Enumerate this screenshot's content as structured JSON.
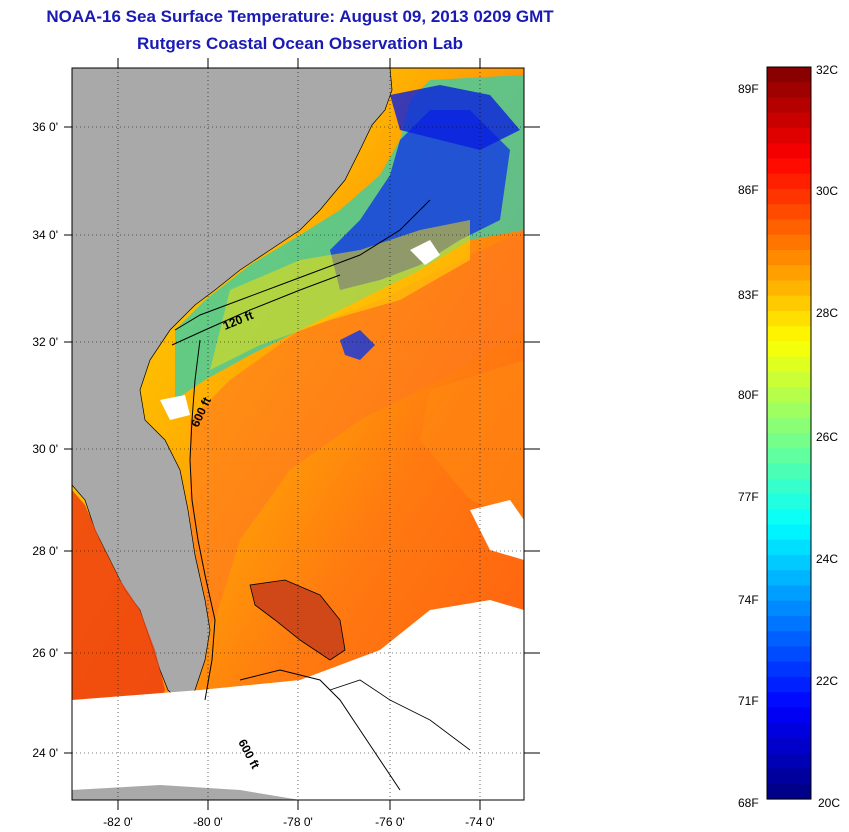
{
  "title": "NOAA-16 Sea Surface Temperature:  August 09, 2013 0209 GMT",
  "subtitle": "Rutgers Coastal Ocean Observation Lab",
  "map": {
    "longitude_labels": [
      "-82 0'",
      "-80 0'",
      "-78 0'",
      "-76 0'",
      "-74 0'"
    ],
    "latitude_labels": [
      "36 0'",
      "34 0'",
      "32 0'",
      "30 0'",
      "28 0'",
      "26 0'",
      "24 0'"
    ],
    "isobath_labels": [
      "120 ft",
      "600 ft",
      "600 ft"
    ],
    "colors": {
      "land": "#a9a9a9",
      "cloud": "#ffffff",
      "coastline": "#000000"
    }
  },
  "colorbar": {
    "celsius_labels": [
      "32C",
      "30C",
      "28C",
      "26C",
      "24C",
      "22C",
      "20C"
    ],
    "fahrenheit_labels": [
      "89F",
      "86F",
      "83F",
      "80F",
      "77F",
      "74F",
      "71F",
      "68F"
    ],
    "range_c": [
      20,
      32
    ],
    "colormap": "jet"
  }
}
